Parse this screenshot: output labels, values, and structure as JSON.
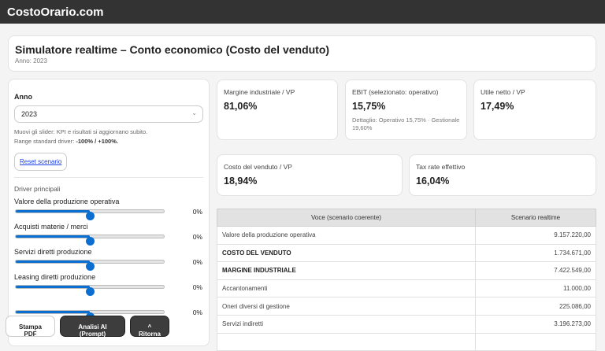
{
  "brand": "CostoOrario.com",
  "header": {
    "title": "Simulatore realtime – Conto economico (Costo del venduto)",
    "subtitle": "Anno: 2023"
  },
  "sidebar": {
    "year_label": "Anno",
    "year_value": "2023",
    "hint1": "Muovi gli slider: KPI e risultati si aggiornano subito.",
    "hint2_prefix": "Range standard driver: ",
    "hint2_range": "-100% / +100%.",
    "reset_label": "Reset scenario",
    "section_label": "Driver principali",
    "sliders": [
      {
        "label": "Valore della produzione operativa",
        "value": "0%"
      },
      {
        "label": "Acquisti materie / merci",
        "value": "0%"
      },
      {
        "label": "Servizi diretti produzione",
        "value": "0%"
      },
      {
        "label": "Leasing diretti produzione",
        "value": "0%"
      },
      {
        "label": "",
        "value": "0%"
      }
    ]
  },
  "kpis": [
    {
      "title": "Margine industriale / VP",
      "value": "81,06%"
    },
    {
      "title": "EBIT (selezionato: operativo)",
      "value": "15,75%",
      "detail": "Dettaglio: Operativo 15,75% · Gestionale 19,60%"
    },
    {
      "title": "Utile netto / VP",
      "value": "17,49%"
    },
    {
      "title": "Costo del venduto / VP",
      "value": "18,94%"
    },
    {
      "title": "Tax rate effettivo",
      "value": "16,04%"
    }
  ],
  "table": {
    "headers": [
      "Voce (scenario coerente)",
      "Scenario realtime"
    ],
    "rows": [
      [
        "Valore della produzione operativa",
        "9.157.220,00"
      ],
      [
        "COSTO DEL VENDUTO",
        "1.734.671,00"
      ],
      [
        "MARGINE INDUSTRIALE",
        "7.422.549,00"
      ],
      [
        "Accantonamenti",
        "11.000,00"
      ],
      [
        "Oneri diversi di gestione",
        "225.086,00"
      ],
      [
        "Servizi indiretti",
        "3.196.273,00"
      ]
    ]
  },
  "floating": {
    "print": "Stampa PDF",
    "ai": "Analisi AI (Prompt)",
    "back": "^ Ritorna"
  },
  "colors": {
    "accent": "#0a6fd1",
    "topbar": "#333333"
  }
}
